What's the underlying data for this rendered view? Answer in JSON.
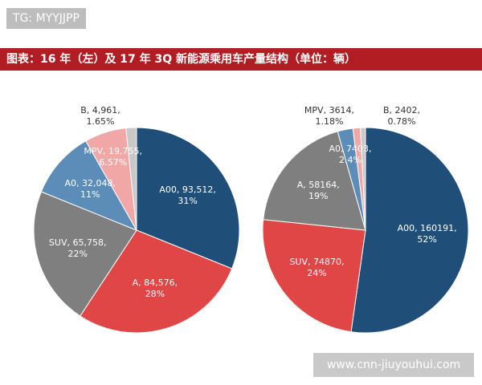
{
  "header": {
    "watermark": "TG: MYYJJPP",
    "title": "图表：16 年（左）及 17 年 3Q 新能源乘用车产量结构（单位：辆）"
  },
  "footer": {
    "watermark": "www.cnn-jiuyouhui.com"
  },
  "chart_data": [
    {
      "type": "pie",
      "values": [
        93512,
        84576,
        65758,
        32048,
        19755,
        4961
      ],
      "value_labels": [
        "A00, 93,512, 31%",
        "A, 84,576, 28%",
        "SUV, 65,758, 22%",
        "A0, 32,048, 11%",
        "MPV, 19,755, 6.57%",
        "B, 4,961, 1.65%"
      ],
      "colors": [
        "#1f4e79",
        "#e04646",
        "#7f7f7f",
        "#5b8db8",
        "#f2a7a7",
        "#c8c8c8"
      ]
    },
    {
      "type": "pie",
      "values": [
        160191,
        74870,
        58164,
        7403,
        3614,
        2402
      ],
      "value_labels": [
        "A00, 160191, 52%",
        "SUV, 74870, 24%",
        "A, 58164, 19%",
        "A0, 7403, 2.4%",
        "MPV, 3614, 1.18%",
        "B, 2402, 0.78%"
      ],
      "colors": [
        "#1f4e79",
        "#e04646",
        "#7f7f7f",
        "#5b8db8",
        "#f2a7a7",
        "#c8c8c8"
      ]
    }
  ]
}
